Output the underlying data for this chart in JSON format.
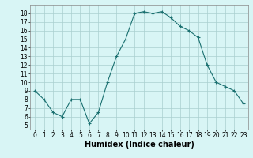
{
  "x": [
    0,
    1,
    2,
    3,
    4,
    5,
    6,
    7,
    8,
    9,
    10,
    11,
    12,
    13,
    14,
    15,
    16,
    17,
    18,
    19,
    20,
    21,
    22,
    23
  ],
  "y": [
    9,
    8,
    6.5,
    6,
    8,
    8,
    5.2,
    6.5,
    10,
    13,
    15,
    18,
    18.2,
    18,
    18.2,
    17.5,
    16.5,
    16,
    15.2,
    12,
    10,
    9.5,
    9,
    7.5
  ],
  "line_color": "#1a7070",
  "marker": "+",
  "marker_size": 3,
  "marker_linewidth": 0.8,
  "bg_color": "#d8f5f5",
  "grid_color": "#aacfcf",
  "xlabel": "Humidex (Indice chaleur)",
  "xlim": [
    -0.5,
    23.5
  ],
  "ylim": [
    4.5,
    19
  ],
  "yticks": [
    5,
    6,
    7,
    8,
    9,
    10,
    11,
    12,
    13,
    14,
    15,
    16,
    17,
    18
  ],
  "xticks": [
    0,
    1,
    2,
    3,
    4,
    5,
    6,
    7,
    8,
    9,
    10,
    11,
    12,
    13,
    14,
    15,
    16,
    17,
    18,
    19,
    20,
    21,
    22,
    23
  ],
  "tick_label_fontsize": 5.5,
  "xlabel_fontsize": 7,
  "line_width": 0.8
}
